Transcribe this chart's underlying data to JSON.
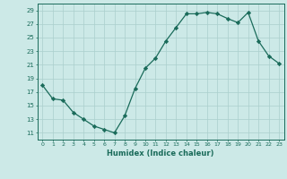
{
  "x": [
    0,
    1,
    2,
    3,
    4,
    5,
    6,
    7,
    8,
    9,
    10,
    11,
    12,
    13,
    14,
    15,
    16,
    17,
    18,
    19,
    20,
    21,
    22,
    23
  ],
  "y": [
    18,
    16,
    15.8,
    14,
    13,
    12,
    11.5,
    11,
    13.5,
    17.5,
    20.5,
    22,
    24.5,
    26.5,
    28.5,
    28.5,
    28.7,
    28.5,
    27.8,
    27.2,
    28.7,
    24.5,
    22.3,
    21.2
  ],
  "xlim": [
    -0.5,
    23.5
  ],
  "ylim": [
    10,
    30
  ],
  "yticks": [
    11,
    13,
    15,
    17,
    19,
    21,
    23,
    25,
    27,
    29
  ],
  "xticks": [
    0,
    1,
    2,
    3,
    4,
    5,
    6,
    7,
    8,
    9,
    10,
    11,
    12,
    13,
    14,
    15,
    16,
    17,
    18,
    19,
    20,
    21,
    22,
    23
  ],
  "xlabel": "Humidex (Indice chaleur)",
  "line_color": "#1a6b5a",
  "marker": "D",
  "marker_size": 2.2,
  "background_color": "#cce9e7",
  "grid_color": "#aacfcc"
}
